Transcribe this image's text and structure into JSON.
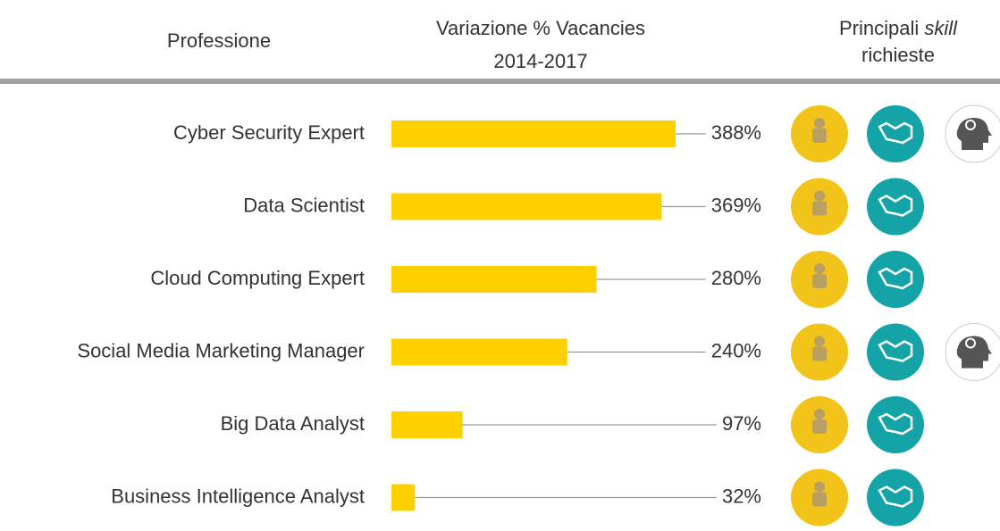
{
  "chart_data": {
    "type": "bar",
    "headers": {
      "profession": "Professione",
      "variation": [
        "Variazione % Vacancies",
        "2014-2017"
      ],
      "skills": [
        "Principali ",
        "skill",
        "richieste"
      ]
    },
    "categories": [
      "Cyber Security Expert",
      "Data Scientist",
      "Cloud Computing Expert",
      "Social Media Marketing Manager",
      "Big Data Analyst",
      "Business Intelligence Analyst"
    ],
    "values": [
      388,
      369,
      280,
      240,
      97,
      32
    ],
    "value_labels": [
      "388%",
      "369%",
      "280%",
      "240%",
      "97%",
      "32%"
    ],
    "color": "#ffd000"
  }
}
